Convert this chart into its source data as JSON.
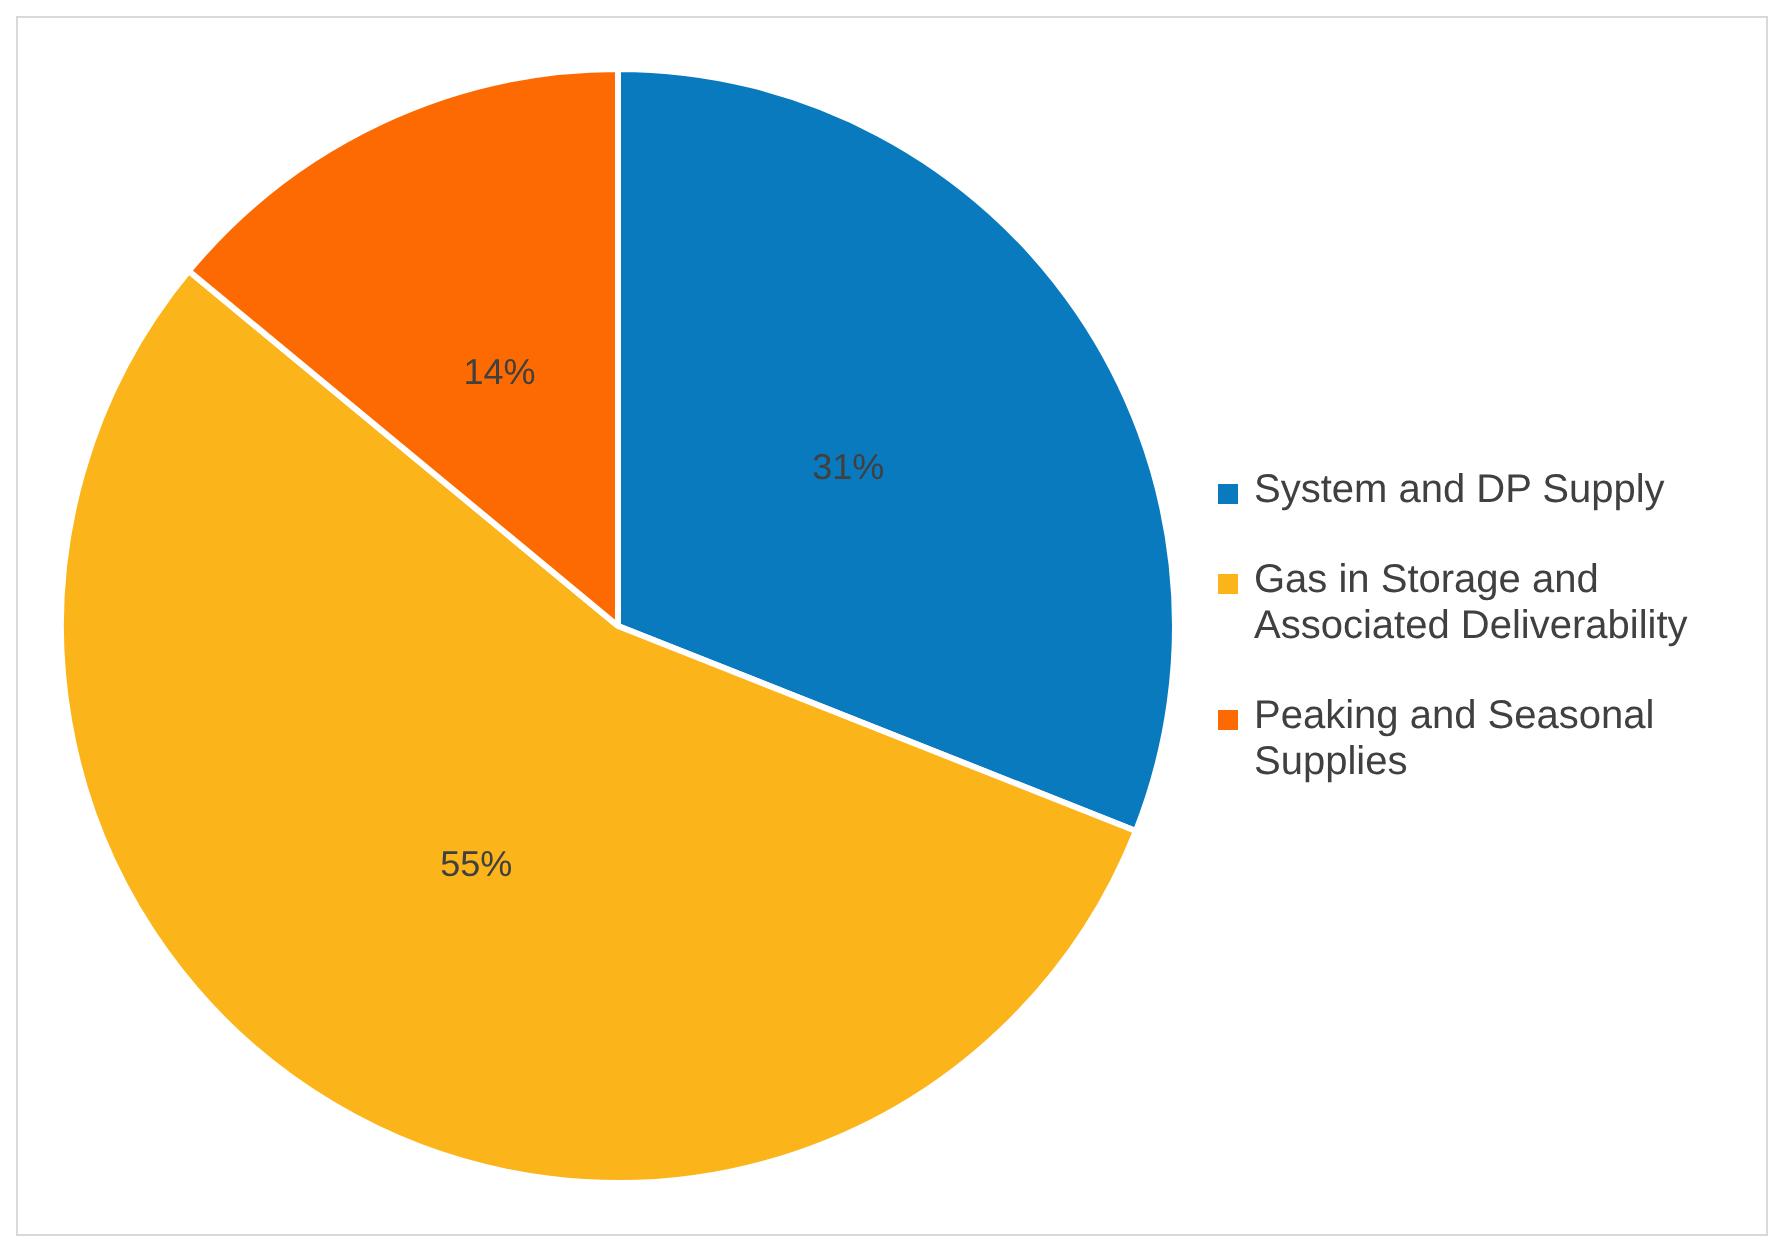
{
  "chart_data": {
    "type": "pie",
    "categories": [
      "System and DP Supply",
      "Gas in Storage and Associated Deliverability",
      "Peaking and Seasonal Supplies"
    ],
    "values": [
      31,
      55,
      14
    ],
    "colors": [
      "#0a7abf",
      "#fbb41a",
      "#fd6a02"
    ],
    "value_labels": [
      "31%",
      "55%",
      "14%"
    ],
    "legend": "right"
  }
}
